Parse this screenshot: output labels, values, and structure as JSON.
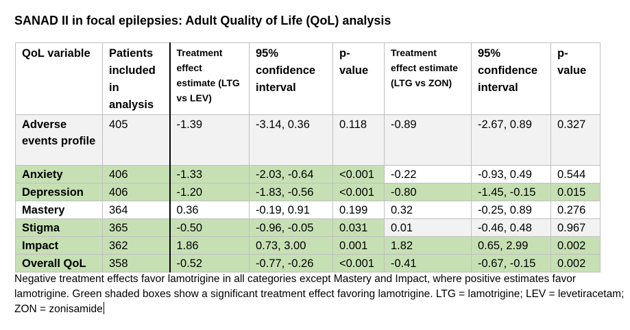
{
  "title": "SANAD II in focal epilepsies: Adult Quality of Life (QoL) analysis",
  "headers": {
    "var": "QoL variable",
    "patients": "Patients included in analysis",
    "te_lev": "Treatment effect estimate (LTG vs LEV)",
    "ci_lev": "95% confidence interval",
    "p_lev": "p-value",
    "te_zon": "Treatment effect estimate (LTG vs ZON)",
    "ci_zon": "95% confidence interval",
    "p_zon": "p-value"
  },
  "rows": [
    {
      "var": "Adverse events profile",
      "n": "405",
      "te_lev": "-1.39",
      "ci_lev": "-3.14, 0.36",
      "p_lev": "0.118",
      "te_zon": "-0.89",
      "ci_zon": "-2.67, 0.89",
      "p_zon": "0.327"
    },
    {
      "var": "Anxiety",
      "n": "406",
      "te_lev": "-1.33",
      "ci_lev": "-2.03, -0.64",
      "p_lev": "<0.001",
      "te_zon": "-0.22",
      "ci_zon": "-0.93, 0.49",
      "p_zon": "0.544"
    },
    {
      "var": "Depression",
      "n": "406",
      "te_lev": "-1.20",
      "ci_lev": "-1.83, -0.56",
      "p_lev": "<0.001",
      "te_zon": "-0.80",
      "ci_zon": "-1.45, -0.15",
      "p_zon": "0.015"
    },
    {
      "var": "Mastery",
      "n": "364",
      "te_lev": "0.36",
      "ci_lev": "-0.19, 0.91",
      "p_lev": "0.199",
      "te_zon": "0.32",
      "ci_zon": "-0.25, 0.89",
      "p_zon": "0.276"
    },
    {
      "var": "Stigma",
      "n": "365",
      "te_lev": "-0.50",
      "ci_lev": "-0.96, -0.05",
      "p_lev": "0.031",
      "te_zon": "0.01",
      "ci_zon": "-0.46, 0.48",
      "p_zon": "0.967"
    },
    {
      "var": "Impact",
      "n": "362",
      "te_lev": "1.86",
      "ci_lev": "0.73, 3.00",
      "p_lev": "0.001",
      "te_zon": "1.82",
      "ci_zon": "0.65, 2.99",
      "p_zon": "0.002"
    },
    {
      "var": "Overall QoL",
      "n": "358",
      "te_lev": "-0.52",
      "ci_lev": "-0.77, -0.26",
      "p_lev": "<0.001",
      "te_zon": "-0.41",
      "ci_zon": "-0.67, -0.15",
      "p_zon": "0.002"
    }
  ],
  "colors": {
    "significant_green": "#c6e0b4",
    "grey": "#f2f2f2",
    "white": "#ffffff"
  },
  "caption": "Negative treatment effects favor lamotrigine in all categories except Mastery and Impact, where positive estimates favor lamotrigine. Green shaded boxes show a significant treatment effect favoring lamotrigine. LTG = lamotrigine; LEV = levetiracetam; ZON = zonisamide"
}
